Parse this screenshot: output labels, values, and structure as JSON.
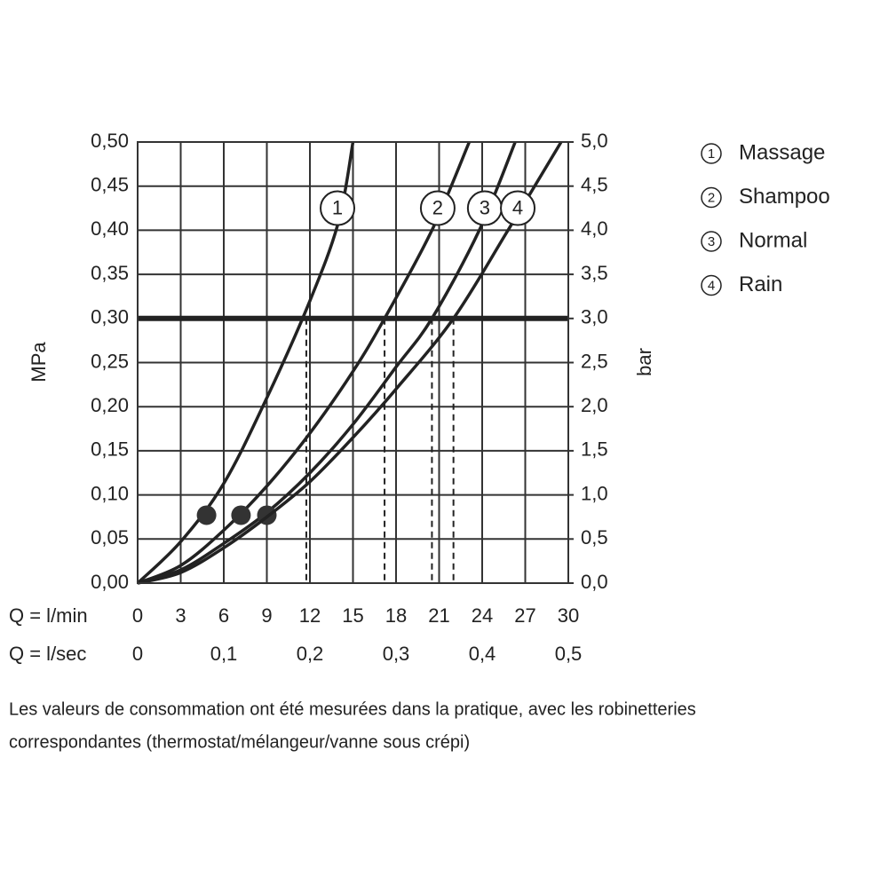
{
  "chart_data": {
    "type": "line",
    "ylabel": "MPa",
    "y2label": "bar",
    "xlabel": "Q = l/min",
    "x2label": "Q = l/sec",
    "xlim": [
      0,
      30
    ],
    "xticks": [
      0,
      3,
      6,
      9,
      12,
      15,
      18,
      21,
      24,
      27,
      30
    ],
    "x2lim": [
      0,
      0.5
    ],
    "x2ticks": [
      0,
      {
        "value": 0.1,
        "label": "0,1"
      },
      {
        "value": 0.2,
        "label": "0,2"
      },
      {
        "value": 0.3,
        "label": "0,3"
      },
      {
        "value": 0.4,
        "label": "0,4"
      },
      {
        "value": 0.5,
        "label": "0,5"
      }
    ],
    "ylim": [
      0,
      0.5
    ],
    "yticks": [
      {
        "value": 0,
        "label": "0,00"
      },
      {
        "value": 0.05,
        "label": "0,05"
      },
      {
        "value": 0.1,
        "label": "0,10"
      },
      {
        "value": 0.15,
        "label": "0,15"
      },
      {
        "value": 0.2,
        "label": "0,20"
      },
      {
        "value": 0.25,
        "label": "0,25"
      },
      {
        "value": 0.3,
        "label": "0,30"
      },
      {
        "value": 0.35,
        "label": "0,35"
      },
      {
        "value": 0.4,
        "label": "0,40"
      },
      {
        "value": 0.45,
        "label": "0,45"
      },
      {
        "value": 0.5,
        "label": "0,50"
      }
    ],
    "y2lim": [
      0,
      5
    ],
    "y2ticks": [
      {
        "value": 0,
        "label": "0,0"
      },
      {
        "value": 0.5,
        "label": "0,5"
      },
      {
        "value": 1,
        "label": "1,0"
      },
      {
        "value": 1.5,
        "label": "1,5"
      },
      {
        "value": 2,
        "label": "2,0"
      },
      {
        "value": 2.5,
        "label": "2,5"
      },
      {
        "value": 3,
        "label": "3,0"
      },
      {
        "value": 3.5,
        "label": "3,5"
      },
      {
        "value": 4,
        "label": "4,0"
      },
      {
        "value": 4.5,
        "label": "4,5"
      },
      {
        "value": 5,
        "label": "5,0"
      }
    ],
    "grid": true,
    "reference_y": 0.3,
    "series": [
      {
        "name": "Massage",
        "label": "1",
        "color": "#222222",
        "x": [
          0,
          3,
          6,
          9,
          12,
          14,
          15
        ],
        "values": [
          0,
          0.047,
          0.113,
          0.21,
          0.32,
          0.41,
          0.5
        ],
        "flow_at_reference": 11.75,
        "point": [
          4.8,
          0.077
        ]
      },
      {
        "name": "Shampoo",
        "label": "2",
        "color": "#222222",
        "x": [
          0,
          3,
          6,
          9,
          12,
          15,
          17.2,
          20.5,
          23.1
        ],
        "values": [
          0,
          0.02,
          0.06,
          0.11,
          0.17,
          0.24,
          0.3,
          0.4,
          0.5
        ],
        "flow_at_reference": 17.2,
        "point": [
          7.2,
          0.077
        ]
      },
      {
        "name": "Normal",
        "label": "3",
        "color": "#222222",
        "x": [
          0,
          3,
          6,
          9,
          12,
          15,
          18,
          20.5,
          23.8,
          26.3
        ],
        "values": [
          0,
          0.015,
          0.045,
          0.08,
          0.125,
          0.18,
          0.245,
          0.3,
          0.4,
          0.5
        ],
        "flow_at_reference": 20.5,
        "point": [
          9,
          0.077
        ]
      },
      {
        "name": "Rain",
        "label": "4",
        "color": "#222222",
        "x": [
          0,
          3,
          6,
          9,
          12,
          15,
          18,
          22,
          25.8,
          29.5
        ],
        "values": [
          0,
          0.012,
          0.04,
          0.075,
          0.115,
          0.165,
          0.22,
          0.3,
          0.4,
          0.5
        ],
        "flow_at_reference": 22
      }
    ],
    "note": [
      "Les valeurs de consommation ont été mesurées dans la pratique, avec les robinetteries",
      "correspondantes (thermostat/mélangeur/vanne sous crépi)"
    ]
  }
}
